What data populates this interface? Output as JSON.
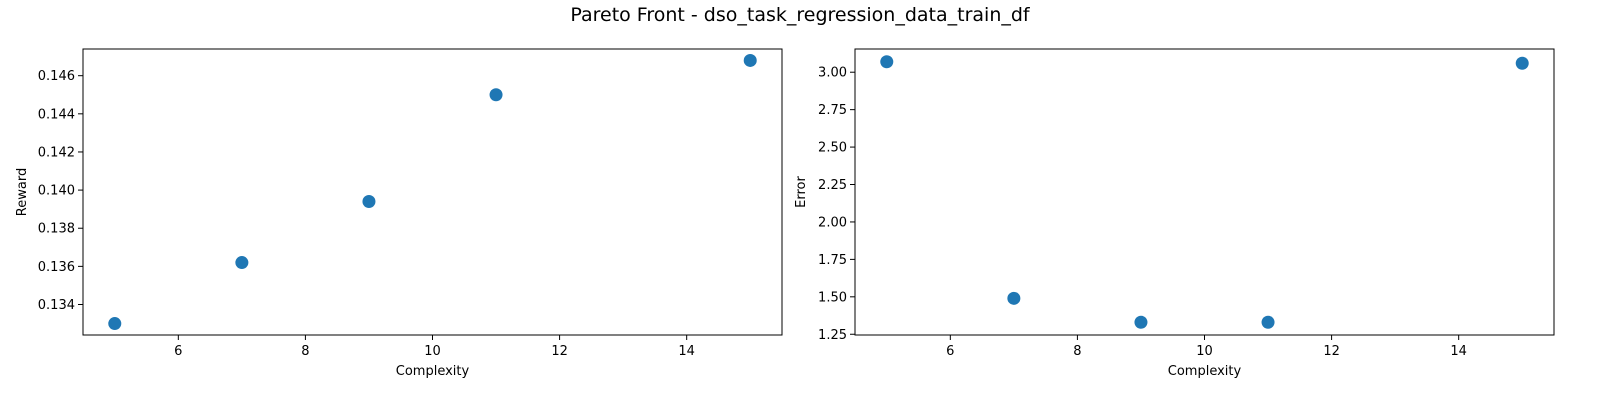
{
  "figure": {
    "title": "Pareto Front - dso_task_regression_data_train_df"
  },
  "chart_data": [
    {
      "type": "scatter",
      "title": "",
      "xlabel": "Complexity",
      "ylabel": "Reward",
      "xlim": [
        4.5,
        15.5
      ],
      "ylim": [
        0.1324,
        0.1474
      ],
      "xticks": [
        6,
        8,
        10,
        12,
        14
      ],
      "yticks": [
        0.134,
        0.136,
        0.138,
        0.14,
        0.142,
        0.144,
        0.146
      ],
      "yticks_label": [
        "0.134",
        "0.136",
        "0.138",
        "0.140",
        "0.142",
        "0.144",
        "0.146"
      ],
      "xticks_label": [
        "6",
        "8",
        "10",
        "12",
        "14"
      ],
      "x": [
        5,
        7,
        9,
        11,
        15
      ],
      "y": [
        0.133,
        0.1362,
        0.1394,
        0.145,
        0.1468
      ],
      "color": "#1f77b4",
      "grid": false
    },
    {
      "type": "scatter",
      "title": "",
      "xlabel": "Complexity",
      "ylabel": "Error",
      "xlim": [
        4.5,
        15.5
      ],
      "ylim": [
        1.245,
        3.155
      ],
      "xticks": [
        6,
        8,
        10,
        12,
        14
      ],
      "yticks": [
        1.25,
        1.5,
        1.75,
        2.0,
        2.25,
        2.5,
        2.75,
        3.0
      ],
      "yticks_label": [
        "1.25",
        "1.50",
        "1.75",
        "2.00",
        "2.25",
        "2.50",
        "2.75",
        "3.00"
      ],
      "xticks_label": [
        "6",
        "8",
        "10",
        "12",
        "14"
      ],
      "x": [
        5,
        7,
        9,
        11,
        15
      ],
      "y": [
        3.07,
        1.49,
        1.33,
        1.33,
        3.06
      ],
      "color": "#1f77b4",
      "grid": false
    }
  ]
}
